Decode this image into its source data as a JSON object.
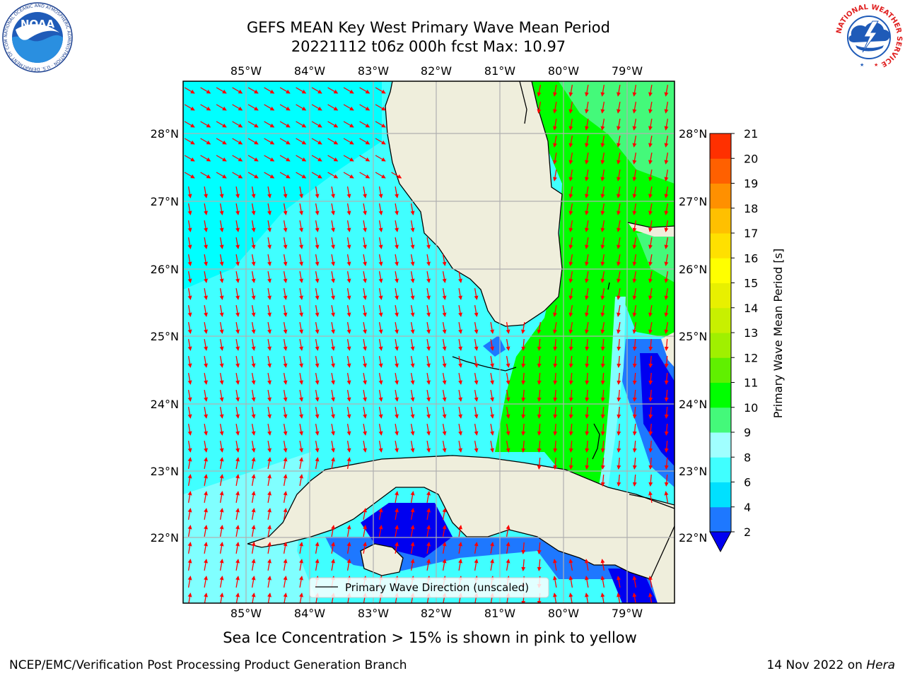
{
  "header": {
    "title_line1": "GEFS MEAN Key West Primary Wave Mean Period",
    "title_line2": "20221112 t06z 000h fcst   Max: 10.97"
  },
  "logos": {
    "noaa_text": "NOAA",
    "noaa_ring_text": "NATIONAL OCEANIC AND ATMOSPHERIC ADMINISTRATION · U.S. DEPARTMENT OF COMMERCE",
    "nws_ring_text": "NATIONAL WEATHER SERVICE"
  },
  "map": {
    "lon_ticks": [
      "85°W",
      "84°W",
      "83°W",
      "82°W",
      "81°W",
      "80°W",
      "79°W"
    ],
    "lat_ticks": [
      "28°N",
      "27°N",
      "26°N",
      "25°N",
      "24°N",
      "23°N",
      "22°N"
    ],
    "legend_label": "Primary Wave Direction (unscaled)",
    "colors": {
      "land": "#efeedc",
      "cyan_4_6": "#00ffff",
      "cyan_6_8": "#40ffff",
      "cyan_light": "#80ffff",
      "green_10_11": "#00ff00",
      "green_9_10": "#44f97a",
      "blue_2_4": "#1e78ff",
      "blue_lt2": "#0000f0",
      "arrow": "#ff0000"
    }
  },
  "colorbar": {
    "label": "Primary Wave Mean Period [s]",
    "ticks": [
      "2",
      "4",
      "6",
      "8",
      "9",
      "10",
      "11",
      "12",
      "13",
      "14",
      "15",
      "16",
      "17",
      "18",
      "19",
      "20",
      "21"
    ],
    "colors": [
      "#1e78ff",
      "#00e0ff",
      "#40ffff",
      "#a0ffff",
      "#44f97a",
      "#00ff00",
      "#60f000",
      "#a0f000",
      "#c8f000",
      "#e8f000",
      "#ffff00",
      "#ffe000",
      "#ffc000",
      "#ff9000",
      "#ff6000",
      "#ff3000",
      "#ff0000"
    ],
    "under_color": "#0000f0"
  },
  "caption": "Sea Ice Concentration > 15% is shown in pink to yellow",
  "footer": {
    "left": "NCEP/EMC/Verification Post Processing Product Generation Branch",
    "right_date": "14 Nov 2022 on ",
    "right_host": "Hera"
  }
}
